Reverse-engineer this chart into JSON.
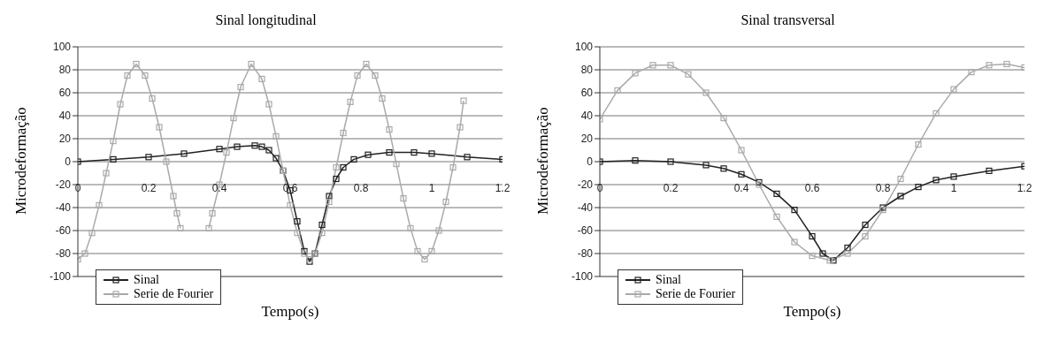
{
  "chart_data": [
    {
      "type": "line",
      "title": "Sinal longitudinal",
      "xlabel": "Tempo(s)",
      "ylabel": "Microdeformação",
      "xlim": [
        0,
        1.2
      ],
      "xticks": [
        0,
        0.2,
        0.4,
        0.6,
        0.8,
        1,
        1.2
      ],
      "ylim": [
        -100,
        100
      ],
      "yticks": [
        -100,
        -80,
        -60,
        -40,
        -20,
        0,
        20,
        40,
        60,
        80,
        100
      ],
      "grid": "y",
      "legend": "bottom left",
      "marker": "square",
      "series": [
        {
          "name": "Sinal",
          "color": "#222222",
          "x": [
            0,
            0.1,
            0.2,
            0.3,
            0.4,
            0.45,
            0.5,
            0.52,
            0.54,
            0.56,
            0.58,
            0.6,
            0.62,
            0.64,
            0.655,
            0.67,
            0.69,
            0.71,
            0.73,
            0.75,
            0.78,
            0.82,
            0.88,
            0.95,
            1.0,
            1.1,
            1.2
          ],
          "values": [
            0,
            2,
            4,
            7,
            11,
            13,
            14,
            13,
            10,
            3,
            -8,
            -25,
            -52,
            -78,
            -87,
            -80,
            -55,
            -30,
            -15,
            -5,
            2,
            6,
            8,
            8,
            7,
            4,
            2
          ]
        },
        {
          "name": "Serie de Fourier",
          "color": "#aaaaaa",
          "x": [
            0,
            0.02,
            0.04,
            0.06,
            0.08,
            0.1,
            0.12,
            0.14,
            0.165,
            0.19,
            0.21,
            0.23,
            0.25,
            0.27,
            0.28,
            0.29,
            0.3,
            0.36,
            0.37,
            0.38,
            0.4,
            0.42,
            0.44,
            0.46,
            0.49,
            0.52,
            0.54,
            0.56,
            0.58,
            0.6,
            0.62,
            0.64,
            0.655,
            0.67,
            0.69,
            0.71,
            0.73,
            0.75,
            0.77,
            0.79,
            0.815,
            0.84,
            0.86,
            0.88,
            0.9,
            0.92,
            0.94,
            0.96,
            0.98,
            1.0,
            1.02,
            1.04,
            1.06,
            1.08,
            1.09
          ],
          "values": [
            -85,
            -80,
            -62,
            -38,
            -10,
            18,
            50,
            75,
            85,
            75,
            55,
            30,
            0,
            -30,
            -45,
            -58,
            null,
            null,
            -58,
            -45,
            -20,
            8,
            38,
            65,
            85,
            72,
            50,
            22,
            -8,
            -38,
            -62,
            -80,
            -85,
            -80,
            -62,
            -35,
            -5,
            25,
            52,
            75,
            85,
            75,
            55,
            28,
            -2,
            -32,
            -58,
            -78,
            -85,
            -78,
            -60,
            -35,
            -5,
            30,
            53
          ]
        }
      ]
    },
    {
      "type": "line",
      "title": "Sinal transversal",
      "xlabel": "Tempo(s)",
      "ylabel": "Microdeformação",
      "xlim": [
        0,
        1.2
      ],
      "xticks": [
        0,
        0.2,
        0.4,
        0.6,
        0.8,
        1,
        1.2
      ],
      "ylim": [
        -100,
        100
      ],
      "yticks": [
        -100,
        -80,
        -60,
        -40,
        -20,
        0,
        20,
        40,
        60,
        80,
        100
      ],
      "grid": "y",
      "legend": "bottom left",
      "marker": "square",
      "series": [
        {
          "name": "Sinal",
          "color": "#222222",
          "x": [
            0,
            0.1,
            0.2,
            0.3,
            0.35,
            0.4,
            0.45,
            0.5,
            0.55,
            0.6,
            0.63,
            0.66,
            0.7,
            0.75,
            0.8,
            0.85,
            0.9,
            0.95,
            1.0,
            1.1,
            1.2
          ],
          "values": [
            0,
            1,
            0,
            -3,
            -6,
            -11,
            -18,
            -28,
            -42,
            -65,
            -80,
            -86,
            -75,
            -55,
            -40,
            -30,
            -22,
            -16,
            -13,
            -8,
            -4
          ]
        },
        {
          "name": "Serie de Fourier",
          "color": "#aaaaaa",
          "x": [
            0,
            0.05,
            0.1,
            0.15,
            0.2,
            0.25,
            0.3,
            0.35,
            0.4,
            0.45,
            0.5,
            0.55,
            0.6,
            0.65,
            0.7,
            0.75,
            0.8,
            0.85,
            0.9,
            0.95,
            1.0,
            1.05,
            1.1,
            1.15,
            1.2
          ],
          "values": [
            37,
            62,
            77,
            84,
            84,
            76,
            60,
            38,
            10,
            -20,
            -48,
            -70,
            -82,
            -86,
            -80,
            -65,
            -42,
            -15,
            15,
            42,
            63,
            78,
            84,
            85,
            82
          ]
        }
      ]
    }
  ]
}
